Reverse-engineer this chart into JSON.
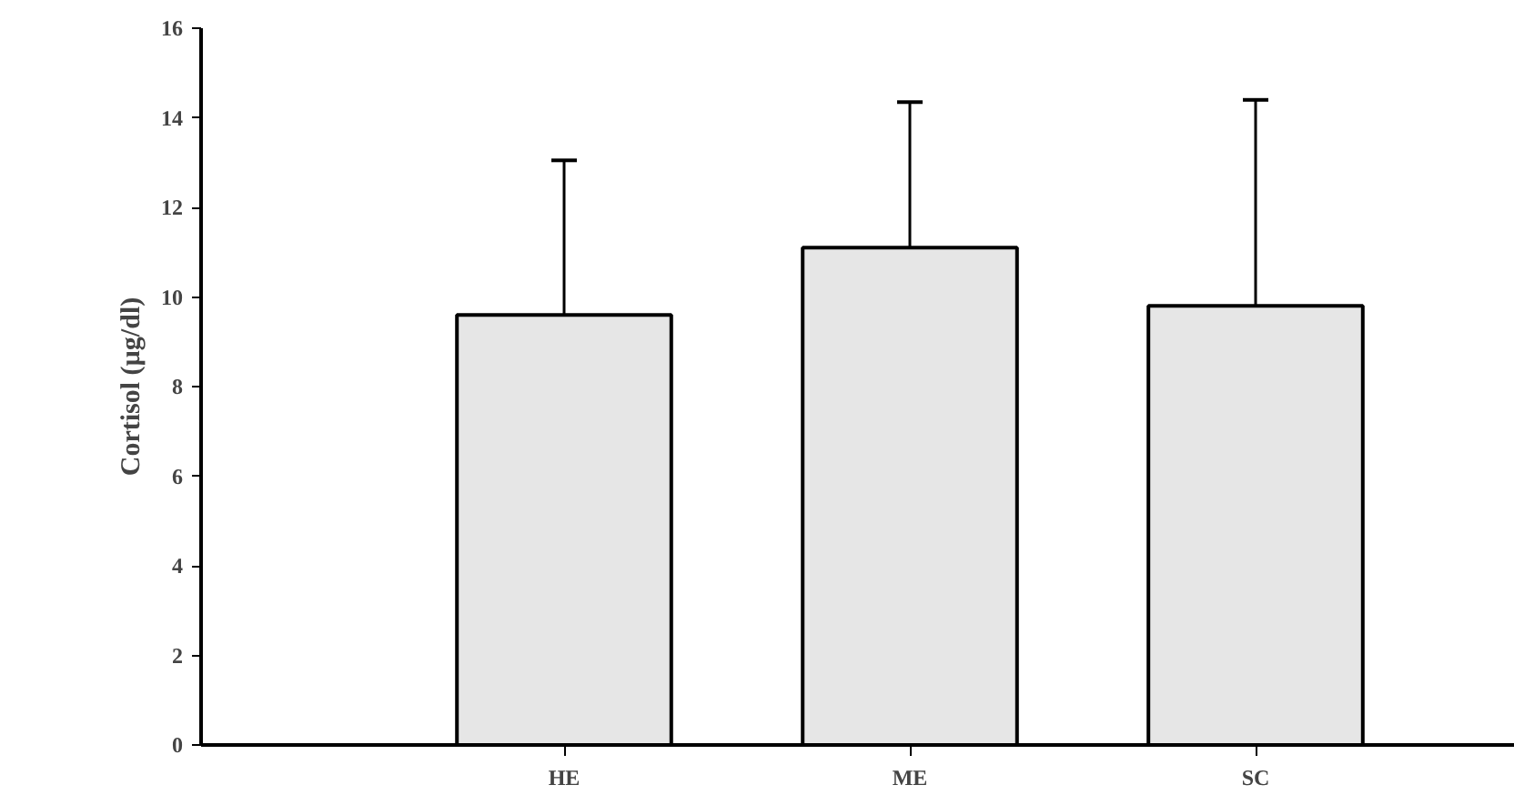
{
  "chart_data": {
    "type": "bar",
    "ylabel": "Cortisol (µg/dl)",
    "categories": [
      "HE",
      "ME",
      "SC"
    ],
    "values": [
      9.6,
      11.1,
      9.8
    ],
    "errors": [
      [
        9.6,
        13.05
      ],
      [
        11.1,
        14.35
      ],
      [
        9.8,
        14.4
      ]
    ],
    "color": "#e6e6e6",
    "ylim": [
      0,
      16
    ],
    "yticks": [
      0,
      2,
      4,
      6,
      8,
      10,
      12,
      14,
      16
    ],
    "grid": false
  }
}
